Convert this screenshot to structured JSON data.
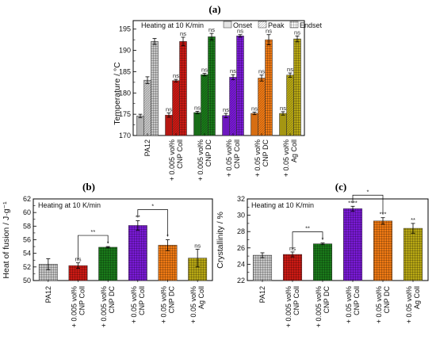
{
  "chart_data": [
    {
      "panel": "(a)",
      "type": "bar",
      "ylabel": "Temperature / °C",
      "ylim": [
        170,
        197
      ],
      "yticks": [
        170,
        175,
        180,
        185,
        190,
        195
      ],
      "annotation": "Heating at 10 K/min",
      "legend_position": "top",
      "categories": [
        [
          "PA12"
        ],
        [
          "+ 0.005 vol%",
          "CNP Coll"
        ],
        [
          "+ 0.005 vol%",
          "CNP DC"
        ],
        [
          "+ 0.05 vol%",
          "CNP Coll"
        ],
        [
          "+ 0.05 vol%",
          "CNP DC"
        ],
        [
          "+ 0.05 vol%",
          "Ag Coll"
        ]
      ],
      "series": [
        {
          "name": "Onset",
          "values": [
            174.6,
            174.8,
            175.4,
            174.7,
            175.2,
            175.2
          ],
          "err": [
            0.4,
            0.5,
            0.3,
            0.5,
            0.3,
            0.4
          ]
        },
        {
          "name": "Peak",
          "values": [
            183.0,
            182.9,
            184.3,
            183.7,
            183.5,
            184.2
          ],
          "err": [
            0.8,
            0.3,
            0.3,
            0.6,
            0.7,
            0.5
          ]
        },
        {
          "name": "Endset",
          "values": [
            192.1,
            192.1,
            193.2,
            193.4,
            192.5,
            192.7
          ],
          "err": [
            0.7,
            1.0,
            0.8,
            0.3,
            1.2,
            0.7
          ]
        }
      ],
      "significance": [
        [
          "",
          "",
          ""
        ],
        [
          "ns",
          "ns",
          "ns"
        ],
        [
          "ns",
          "ns",
          "ns"
        ],
        [
          "ns",
          "ns",
          "ns"
        ],
        [
          "ns",
          "ns",
          "ns"
        ],
        [
          "ns",
          "ns",
          "ns"
        ]
      ]
    },
    {
      "panel": "(b)",
      "type": "bar",
      "ylabel": "Heat of fusion / J·g⁻¹",
      "ylim": [
        50,
        62
      ],
      "yticks": [
        50,
        52,
        54,
        56,
        58,
        60,
        62
      ],
      "annotation": "Heating at 10 K/min",
      "categories": [
        [
          "PA12"
        ],
        [
          "+ 0.005 vol%",
          "CNP Coll"
        ],
        [
          "+ 0.005 vol%",
          "CNP DC"
        ],
        [
          "+ 0.05 vol%",
          "CNP Coll"
        ],
        [
          "+ 0.05 vol%",
          "CNP DC"
        ],
        [
          "+ 0.05 vol%",
          "Ag Coll"
        ]
      ],
      "values": [
        52.4,
        52.2,
        54.9,
        58.1,
        55.2,
        53.3
      ],
      "err": [
        0.8,
        0.4,
        0.1,
        0.7,
        0.8,
        1.3
      ],
      "significance": [
        "",
        "ns",
        "*",
        "**",
        "*",
        "ns"
      ],
      "brackets": [
        {
          "from": 1,
          "to": 2,
          "label": "**"
        },
        {
          "from": 3,
          "to": 4,
          "label": "*"
        }
      ]
    },
    {
      "panel": "(c)",
      "type": "bar",
      "ylabel": "Crystallinity / %",
      "ylim": [
        22,
        32
      ],
      "yticks": [
        22,
        24,
        26,
        28,
        30,
        32
      ],
      "annotation": "Heating at 10 K/min",
      "categories": [
        [
          "PA12"
        ],
        [
          "+ 0.005 vol%",
          "CNP Coll"
        ],
        [
          "+ 0.005 vol%",
          "CNP DC"
        ],
        [
          "+ 0.05 vol%",
          "CNP Coll"
        ],
        [
          "+ 0.05 vol%",
          "CNP DC"
        ],
        [
          "+ 0.05 vol%",
          "Ag Coll"
        ]
      ],
      "values": [
        25.1,
        25.2,
        26.5,
        30.8,
        29.3,
        28.4
      ],
      "err": [
        0.3,
        0.3,
        0.1,
        0.3,
        0.4,
        0.6
      ],
      "significance": [
        "",
        "ns",
        "*",
        "****",
        "***",
        "**"
      ],
      "brackets": [
        {
          "from": 1,
          "to": 2,
          "label": "**"
        },
        {
          "from": 3,
          "to": 4,
          "label": "*"
        }
      ]
    }
  ],
  "colors": {
    "PA12": "#c8c8c8",
    "CNP Coll 0.005": "#cc1a14",
    "CNP DC 0.005": "#1a7a1a",
    "CNP Coll 0.05": "#7a1ad6",
    "CNP DC 0.05": "#f07a14",
    "Ag Coll": "#b8a814"
  }
}
